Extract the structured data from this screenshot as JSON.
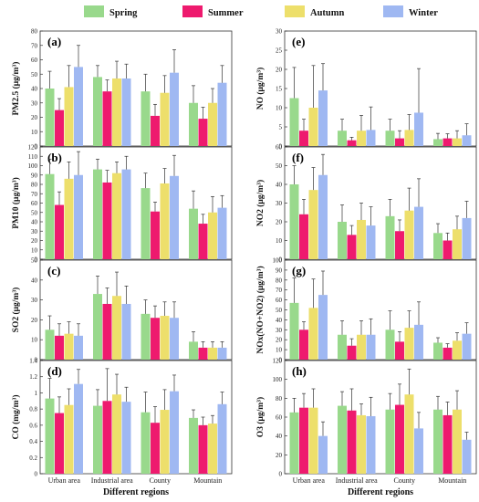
{
  "chart_data": {
    "type": "bar",
    "categories": [
      "Urban area",
      "Industrial area",
      "County",
      "Mountain"
    ],
    "legend": [
      {
        "name": "Spring",
        "color": "#99d98c"
      },
      {
        "name": "Summer",
        "color": "#ee1a6e"
      },
      {
        "name": "Autumn",
        "color": "#eddf6b"
      },
      {
        "name": "Winter",
        "color": "#9fb8f2"
      }
    ],
    "xlabel": "Different regions",
    "panels": [
      {
        "label": "(a)",
        "ylabel": "PM2.5 (μg/m³)",
        "ylim": [
          0,
          80
        ],
        "ticks": [
          0,
          10,
          20,
          30,
          40,
          50,
          60,
          70,
          80
        ],
        "series": [
          {
            "name": "Spring",
            "values": [
              40,
              48,
              38,
              30
            ],
            "errors": [
              12,
              8,
              12,
              12
            ]
          },
          {
            "name": "Summer",
            "values": [
              25,
              38,
              21,
              19
            ],
            "errors": [
              8,
              8,
              8,
              8
            ]
          },
          {
            "name": "Autumn",
            "values": [
              41,
              47,
              37,
              30
            ],
            "errors": [
              15,
              12,
              12,
              10
            ]
          },
          {
            "name": "Winter",
            "values": [
              55,
              47,
              51,
              44
            ],
            "errors": [
              15,
              10,
              16,
              12
            ]
          }
        ]
      },
      {
        "label": "(e)",
        "ylabel": "NO (μg/m³)",
        "ylim": [
          0,
          30
        ],
        "ticks": [
          0,
          5,
          10,
          15,
          20,
          25,
          30
        ],
        "series": [
          {
            "name": "Spring",
            "values": [
              12.5,
              4,
              4,
              1.8
            ],
            "errors": [
              8,
              3,
              3,
              1.5
            ]
          },
          {
            "name": "Summer",
            "values": [
              4,
              1.5,
              2,
              2
            ],
            "errors": [
              3,
              0.8,
              2,
              1.2
            ]
          },
          {
            "name": "Autumn",
            "values": [
              10,
              4,
              4.2,
              2
            ],
            "errors": [
              11,
              4,
              4,
              2
            ]
          },
          {
            "name": "Winter",
            "values": [
              14.5,
              4.2,
              8.7,
              2.8
            ],
            "errors": [
              7,
              6,
              11.5,
              3
            ]
          }
        ]
      },
      {
        "label": "(b)",
        "ylabel": "PM10 (μg/m³)",
        "ylim": [
          0,
          120
        ],
        "ticks": [
          0,
          10,
          20,
          30,
          40,
          50,
          60,
          70,
          80,
          90,
          100,
          110,
          120
        ],
        "series": [
          {
            "name": "Spring",
            "values": [
              91,
              96,
              76,
              54
            ],
            "errors": [
              16,
              11,
              16,
              19
            ]
          },
          {
            "name": "Summer",
            "values": [
              58,
              82,
              51,
              38
            ],
            "errors": [
              14,
              13,
              10,
              10
            ]
          },
          {
            "name": "Autumn",
            "values": [
              86,
              92,
              81,
              50
            ],
            "errors": [
              18,
              12,
              16,
              17
            ]
          },
          {
            "name": "Winter",
            "values": [
              90,
              96,
              89,
              55
            ],
            "errors": [
              25,
              14,
              22,
              13
            ]
          }
        ]
      },
      {
        "label": "(f)",
        "ylabel": "NO2 (μg/m³)",
        "ylim": [
          0,
          60
        ],
        "ticks": [
          0,
          10,
          20,
          30,
          40,
          50,
          60
        ],
        "series": [
          {
            "name": "Spring",
            "values": [
              40,
              20,
              23,
              14
            ],
            "errors": [
              10,
              9,
              9,
              5
            ]
          },
          {
            "name": "Summer",
            "values": [
              24,
              13,
              15,
              10
            ],
            "errors": [
              8,
              5,
              6,
              4
            ]
          },
          {
            "name": "Autumn",
            "values": [
              37,
              21,
              26,
              16
            ],
            "errors": [
              12,
              9,
              12,
              7
            ]
          },
          {
            "name": "Winter",
            "values": [
              45,
              18,
              28,
              22
            ],
            "errors": [
              11,
              10,
              15,
              9
            ]
          }
        ]
      },
      {
        "label": "(c)",
        "ylabel": "SO2 (μg/m³)",
        "ylim": [
          0,
          50
        ],
        "ticks": [
          0,
          10,
          20,
          30,
          40,
          50
        ],
        "series": [
          {
            "name": "Spring",
            "values": [
              15,
              33,
              23,
              9
            ],
            "errors": [
              7,
              9,
              7,
              5
            ]
          },
          {
            "name": "Summer",
            "values": [
              12,
              28,
              21,
              6
            ],
            "errors": [
              6,
              8,
              6,
              3
            ]
          },
          {
            "name": "Autumn",
            "values": [
              13,
              32,
              22,
              6
            ],
            "errors": [
              6,
              12,
              7,
              3
            ]
          },
          {
            "name": "Winter",
            "values": [
              12,
              28,
              21,
              6
            ],
            "errors": [
              6,
              9,
              8,
              3
            ]
          }
        ]
      },
      {
        "label": "(g)",
        "ylabel": "NOx(NO+NO2) (μg/m³)",
        "ylim": [
          0,
          100
        ],
        "ticks": [
          0,
          10,
          20,
          30,
          40,
          50,
          60,
          70,
          80,
          90,
          100
        ],
        "series": [
          {
            "name": "Spring",
            "values": [
              57,
              25,
              30,
              17
            ],
            "errors": [
              25,
              14,
              19,
              5
            ]
          },
          {
            "name": "Summer",
            "values": [
              30,
              14,
              18,
              12
            ],
            "errors": [
              8,
              7,
              10,
              4
            ]
          },
          {
            "name": "Autumn",
            "values": [
              52,
              25,
              32,
              19
            ],
            "errors": [
              29,
              14,
              17,
              8
            ]
          },
          {
            "name": "Winter",
            "values": [
              65,
              25,
              35,
              26
            ],
            "errors": [
              24,
              16,
              23,
              11
            ]
          }
        ]
      },
      {
        "label": "(d)",
        "ylabel": "CO (mg/m³)",
        "ylim": [
          0,
          1.4
        ],
        "ticks": [
          0,
          0.2,
          0.4,
          0.6,
          0.8,
          1.0,
          1.2,
          1.4
        ],
        "series": [
          {
            "name": "Spring",
            "values": [
              0.93,
              0.84,
              0.76,
              0.69
            ],
            "errors": [
              0.25,
              0.2,
              0.25,
              0.1
            ]
          },
          {
            "name": "Summer",
            "values": [
              0.75,
              0.9,
              0.63,
              0.6
            ],
            "errors": [
              0.2,
              0.4,
              0.2,
              0.1
            ]
          },
          {
            "name": "Autumn",
            "values": [
              0.85,
              0.98,
              0.79,
              0.62
            ],
            "errors": [
              0.2,
              0.25,
              0.25,
              0.1
            ]
          },
          {
            "name": "Winter",
            "values": [
              1.11,
              0.89,
              1.02,
              0.86
            ],
            "errors": [
              0.18,
              0.18,
              0.2,
              0.15
            ]
          }
        ]
      },
      {
        "label": "(h)",
        "ylabel": "O3 (μg/m³)",
        "ylim": [
          0,
          120
        ],
        "ticks": [
          0,
          20,
          40,
          60,
          80,
          100,
          120
        ],
        "series": [
          {
            "name": "Spring",
            "values": [
              65,
              72,
              68,
              68
            ],
            "errors": [
              15,
              15,
              17,
              14
            ]
          },
          {
            "name": "Summer",
            "values": [
              70,
              67,
              73,
              62
            ],
            "errors": [
              15,
              23,
              22,
              14
            ]
          },
          {
            "name": "Autumn",
            "values": [
              70,
              62,
              84,
              68
            ],
            "errors": [
              20,
              12,
              27,
              20
            ]
          },
          {
            "name": "Winter",
            "values": [
              40,
              61,
              48,
              36
            ],
            "errors": [
              15,
              20,
              17,
              8
            ]
          }
        ]
      }
    ]
  }
}
